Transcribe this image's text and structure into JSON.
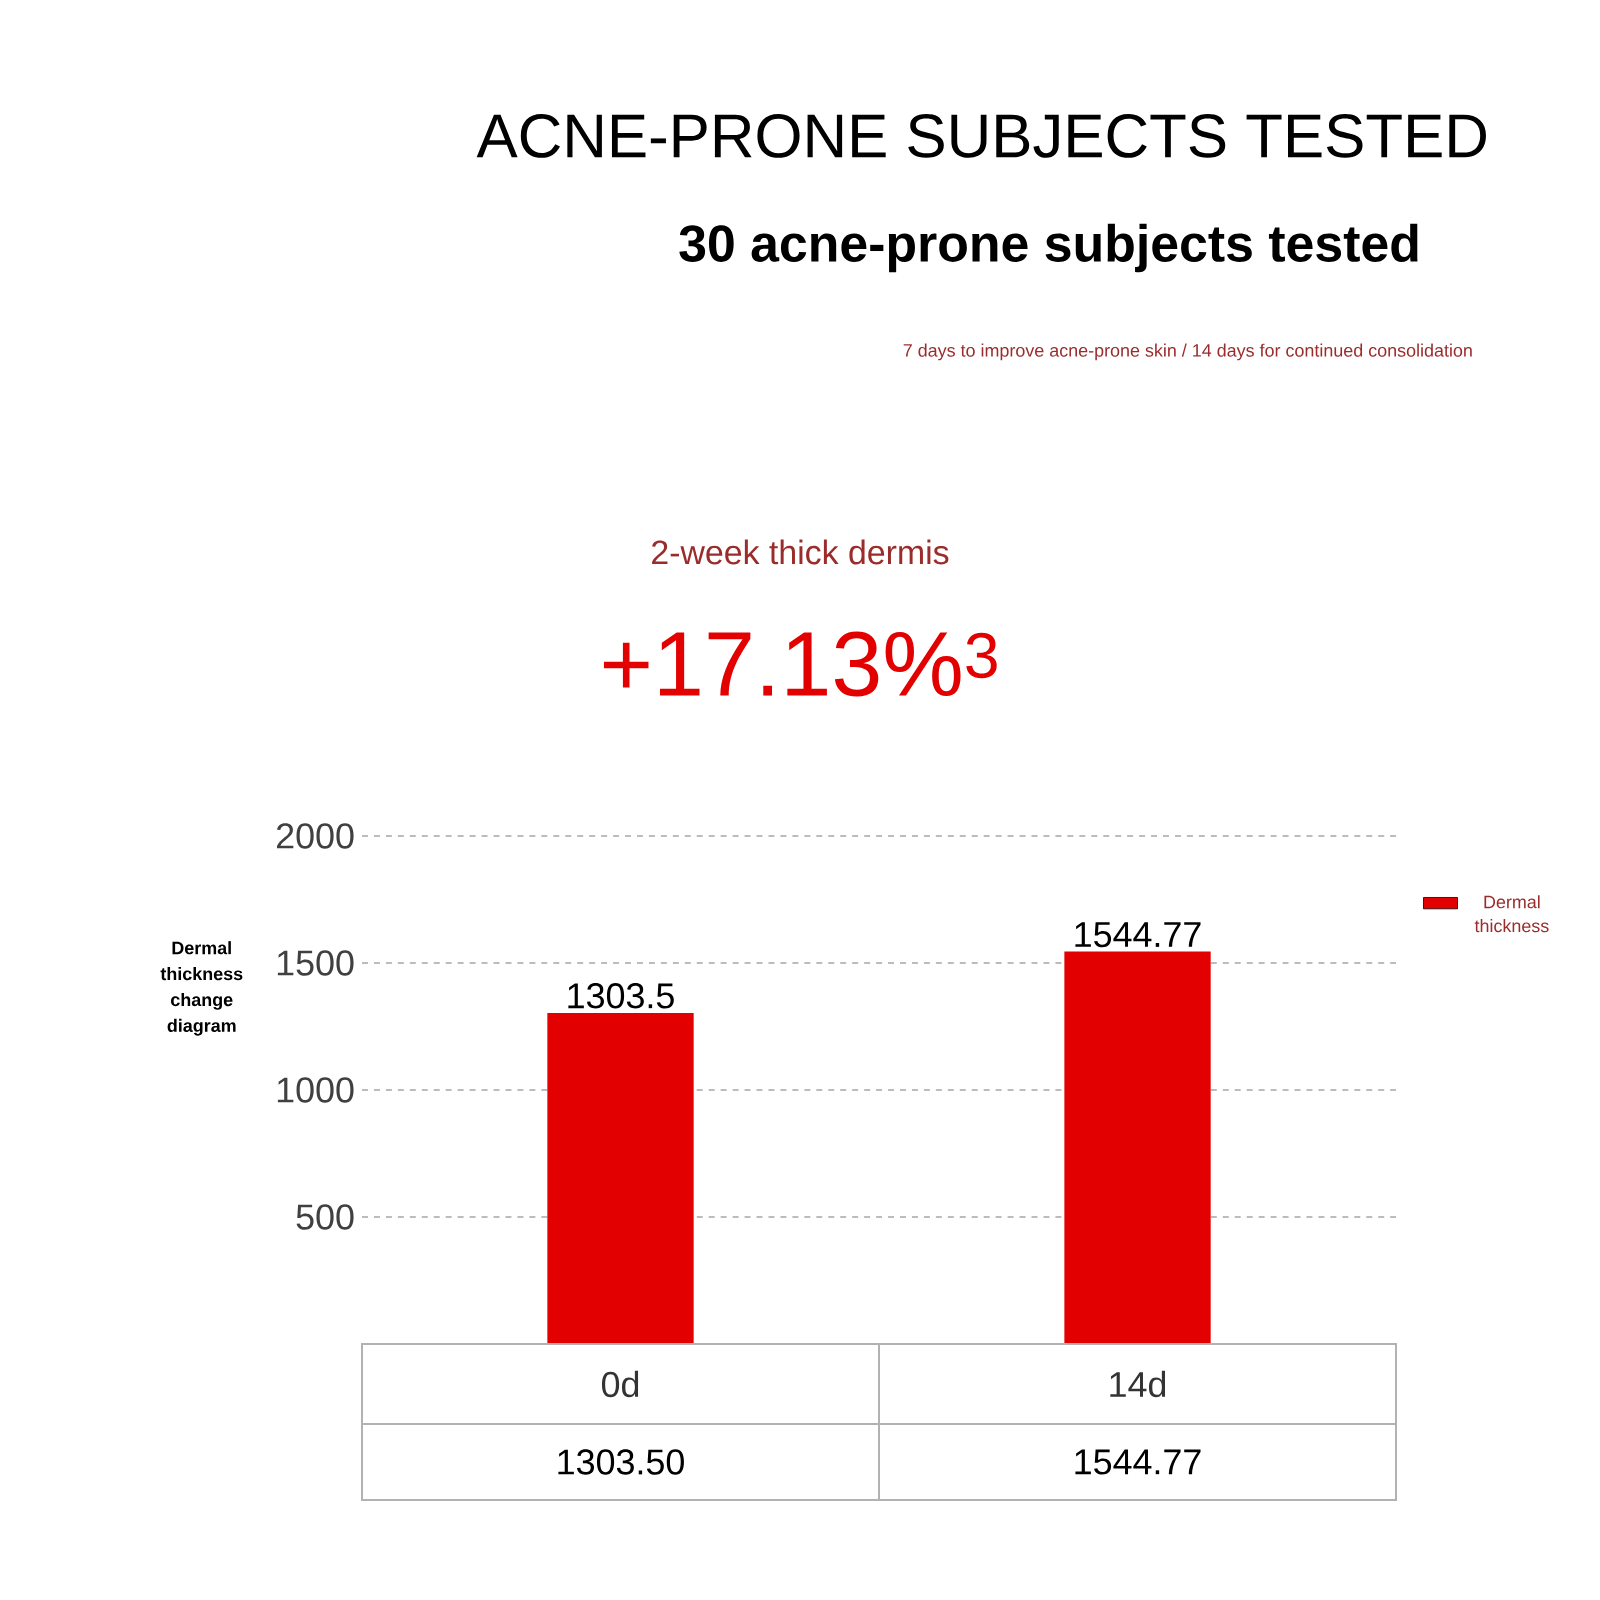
{
  "chart_data": {
    "type": "bar",
    "title": "ACNE-PRONE SUBJECTS TESTED",
    "subtitle": "30 acne-prone subjects tested",
    "annotations": [
      "7 days to improve acne-prone skin / 14 days for continued consolidation",
      "2-week thick dermis",
      "+17.13%$^{3}$",
      "1303.50",
      "1544.77"
    ],
    "ylabel": "Dermal thickness change diagram",
    "categories": [
      "0d",
      "14d"
    ],
    "series": [
      {
        "name": "Dermal thickness",
        "color": "#e30000",
        "values": [
          1303.5,
          1544.77
        ],
        "value_labels": [
          "1303.5",
          "1544.77"
        ]
      }
    ],
    "ylim": [
      0,
      2000
    ],
    "yticks": [
      500,
      1000,
      1500,
      2000
    ],
    "grid": "y",
    "legend": "right"
  }
}
